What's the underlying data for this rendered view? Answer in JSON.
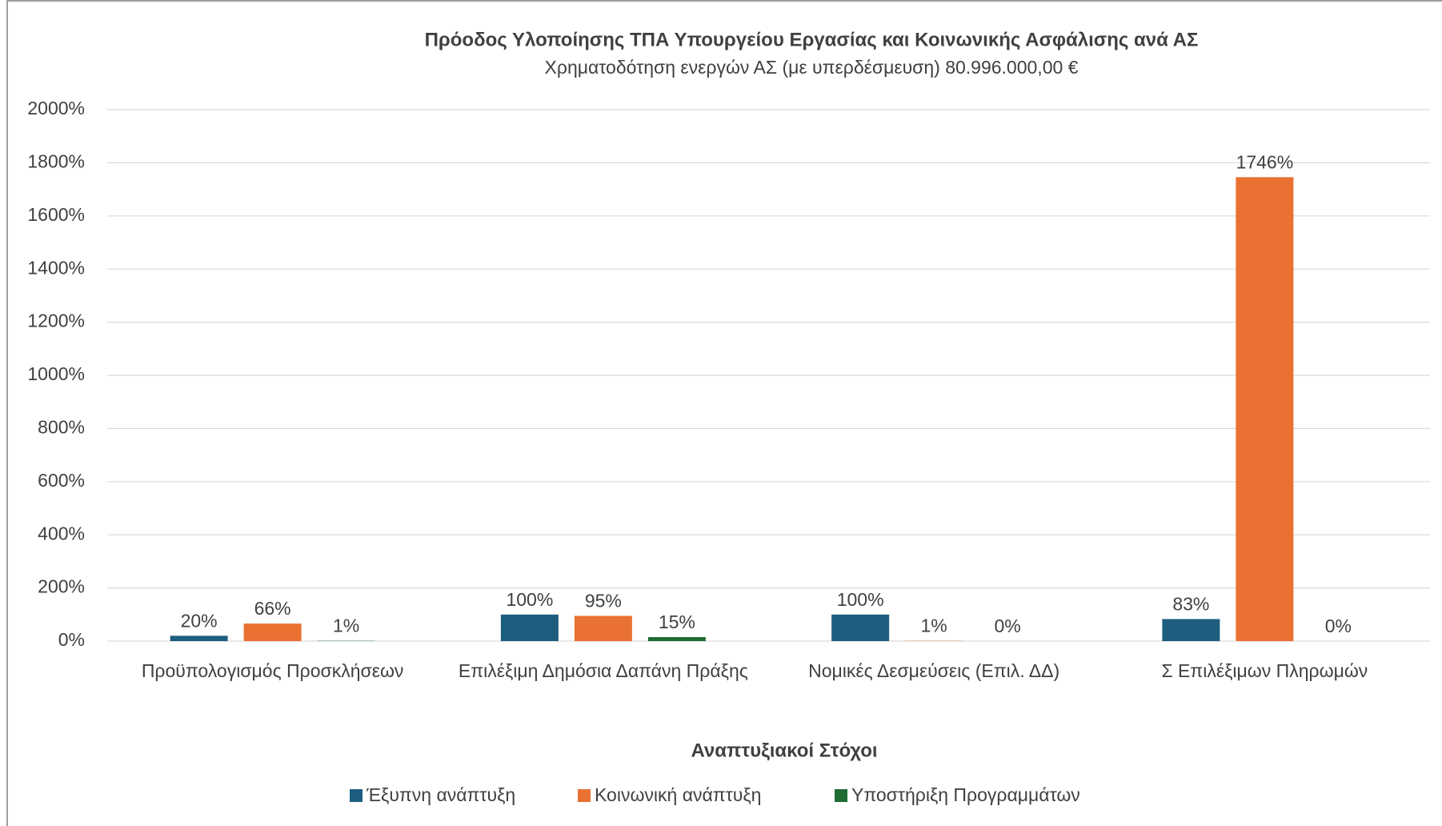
{
  "chart_data": {
    "type": "bar",
    "title": "Πρόοδος Υλοποίησης ΤΠΑ Υπουργείου Εργασίας και Κοινωνικής Ασφάλισης ανά ΑΣ",
    "subtitle": "Χρηματοδότηση ενεργών ΑΣ (με υπερδέσμευση) 80.996.000,00 €",
    "x_label": "Αναπτυξιακοί Στόχοι",
    "categories": [
      "Προϋπολογισμός Προσκλήσεων",
      "Επιλέξιμη Δημόσια Δαπάνη Πράξης",
      "Νομικές Δεσμεύσεις (Επιλ. ΔΔ)",
      "Σ Επιλέξιμων Πληρωμών"
    ],
    "series": [
      {
        "name": "Έξυπνη ανάπτυξη",
        "color": "#1d5e7f",
        "values": [
          20,
          100,
          100,
          83
        ],
        "value_labels": [
          "20%",
          "100%",
          "100%",
          "83%"
        ]
      },
      {
        "name": "Κοινωνική ανάπτυξη",
        "color": "#e97132",
        "values": [
          66,
          95,
          1,
          1746
        ],
        "value_labels": [
          "66%",
          "95%",
          "1%",
          "1746%"
        ]
      },
      {
        "name": "Υποστήριξη Προγραμμάτων",
        "color": "#1e6b34",
        "values": [
          1,
          15,
          0,
          0
        ],
        "value_labels": [
          "1%",
          "15%",
          "0%",
          "0%"
        ]
      }
    ],
    "ylim": [
      0,
      2000
    ],
    "yticks": [
      {
        "value": 0,
        "label": "0%"
      },
      {
        "value": 200,
        "label": "200%"
      },
      {
        "value": 400,
        "label": "400%"
      },
      {
        "value": 600,
        "label": "600%"
      },
      {
        "value": 800,
        "label": "800%"
      },
      {
        "value": 1000,
        "label": "1000%"
      },
      {
        "value": 1200,
        "label": "1200%"
      },
      {
        "value": 1400,
        "label": "1400%"
      },
      {
        "value": 1600,
        "label": "1600%"
      },
      {
        "value": 1800,
        "label": "1800%"
      },
      {
        "value": 2000,
        "label": "2000%"
      }
    ],
    "grid": true,
    "legend": "bottom"
  }
}
